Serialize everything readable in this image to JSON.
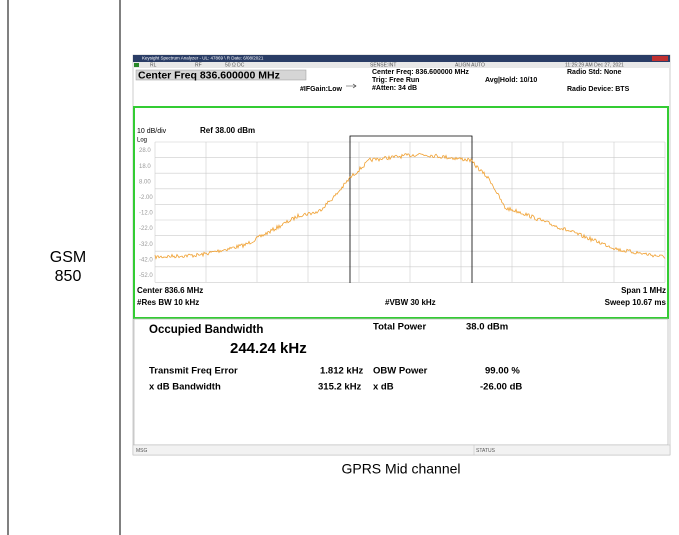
{
  "row_label": "GSM 850",
  "caption": "GPRS Mid channel",
  "analyzer": {
    "window_title": "Keysight Spectrum Analyzer - UL: 47869 \\ R Date: 6/08/2021",
    "status_row": {
      "rl": "RL",
      "rf": "RF",
      "input": "50 Ω  DC",
      "sense": "SENSE:INT",
      "align": "ALIGN AUTO",
      "time": "11:25:29 AM Dec 27, 2021"
    },
    "center_freq_box": "Center Freq 836.600000 MHz",
    "settings": {
      "center": "Center Freq: 836.600000 MHz",
      "trig": "Trig: Free Run",
      "atten": "#Atten: 34 dB",
      "avg": "Avg|Hold: 10/10",
      "ifgain": "#IFGain:Low",
      "radio_std": "Radio Std: None",
      "radio_device": "Radio Device: BTS"
    },
    "scale": "10 dB/div",
    "ref": "Ref 38.00 dBm",
    "log": "Log",
    "y_labels": [
      "28.0",
      "18.0",
      "8.00",
      "-2.00",
      "-12.0",
      "-22.0",
      "-32.0",
      "-42.0",
      "-52.0"
    ],
    "footer": {
      "center": "Center  836.6 MHz",
      "res_bw": "#Res BW  10 kHz",
      "vbw": "#VBW  30 kHz",
      "span": "Span 1 MHz",
      "sweep": "Sweep  10.67 ms"
    },
    "results": {
      "obw_label": "Occupied Bandwidth",
      "obw_value": "244.24 kHz",
      "total_power_label": "Total Power",
      "total_power_value": "38.0 dBm",
      "tfe_label": "Transmit Freq Error",
      "tfe_value": "1.812 kHz",
      "obw_power_label": "OBW Power",
      "obw_power_value": "99.00 %",
      "xdb_bw_label": "x dB Bandwidth",
      "xdb_bw_value": "315.2 kHz",
      "xdb_label": "x dB",
      "xdb_value": "-26.00 dB"
    },
    "msg": "MSG",
    "status": "STATUS"
  }
}
